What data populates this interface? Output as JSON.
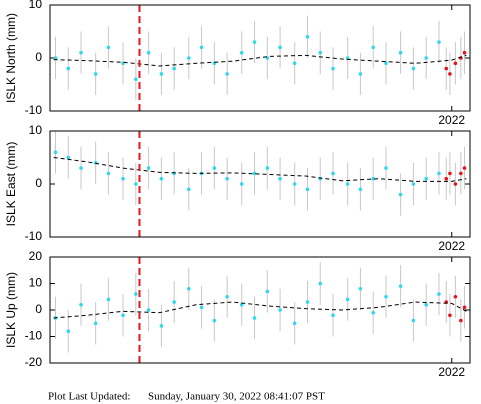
{
  "chart_data": [
    {
      "type": "scatter",
      "ylabel": "ISLK North (mm)",
      "xlim": [
        2019.8,
        2022.1
      ],
      "ylim": [
        -10,
        10
      ],
      "yticks": [
        -10,
        0,
        10
      ],
      "xticks": [
        2022
      ],
      "vline": {
        "x": 2020.29,
        "color": "#e8141c"
      },
      "series": [
        {
          "mode": "markers",
          "color": "#2fd8ee",
          "error": 4,
          "x": [
            2019.83,
            2019.9,
            2019.97,
            2020.05,
            2020.12,
            2020.2,
            2020.27,
            2020.34,
            2020.41,
            2020.48,
            2020.56,
            2020.63,
            2020.7,
            2020.77,
            2020.85,
            2020.92,
            2020.99,
            2021.06,
            2021.14,
            2021.21,
            2021.28,
            2021.35,
            2021.43,
            2021.5,
            2021.57,
            2021.64,
            2021.72,
            2021.79,
            2021.86,
            2021.93
          ],
          "values": [
            0,
            -2,
            1,
            -3,
            2,
            -1,
            -4,
            1,
            -3,
            -2,
            0,
            2,
            -1,
            -3,
            1,
            3,
            0,
            2,
            -1,
            4,
            1,
            -2,
            0,
            -3,
            2,
            -1,
            1,
            -2,
            0,
            3
          ]
        },
        {
          "mode": "markers",
          "color": "#e8141c",
          "error": 4,
          "x": [
            2021.97,
            2021.99,
            2022.02,
            2022.05,
            2022.07
          ],
          "values": [
            -2,
            -3,
            -1,
            0,
            1
          ]
        },
        {
          "mode": "line",
          "color": "#000000",
          "x": [
            2019.82,
            2020.0,
            2020.2,
            2020.4,
            2020.6,
            2020.8,
            2021.0,
            2021.2,
            2021.4,
            2021.6,
            2021.8,
            2022.0,
            2022.08
          ],
          "values": [
            -0.3,
            -0.5,
            -0.8,
            -1.5,
            -1,
            -0.6,
            0.3,
            0.5,
            -0.2,
            -0.6,
            -1,
            -0.4,
            0.5
          ]
        }
      ]
    },
    {
      "type": "scatter",
      "ylabel": "ISLK East (mm)",
      "xlim": [
        2019.8,
        2022.1
      ],
      "ylim": [
        -10,
        10
      ],
      "yticks": [
        -10,
        0,
        10
      ],
      "xticks": [
        2022
      ],
      "vline": {
        "x": 2020.29,
        "color": "#e8141c"
      },
      "series": [
        {
          "mode": "markers",
          "color": "#2fd8ee",
          "error": 4,
          "x": [
            2019.83,
            2019.9,
            2019.97,
            2020.05,
            2020.12,
            2020.2,
            2020.27,
            2020.34,
            2020.41,
            2020.48,
            2020.56,
            2020.63,
            2020.7,
            2020.77,
            2020.85,
            2020.92,
            2020.99,
            2021.06,
            2021.14,
            2021.21,
            2021.28,
            2021.35,
            2021.43,
            2021.5,
            2021.57,
            2021.64,
            2021.72,
            2021.79,
            2021.86,
            2021.93
          ],
          "values": [
            6,
            5,
            3,
            4,
            2,
            1,
            0,
            3,
            1,
            2,
            -1,
            2,
            3,
            1,
            0,
            2,
            3,
            1,
            0,
            -1,
            1,
            2,
            0,
            -1,
            1,
            3,
            -2,
            0,
            1,
            2
          ]
        },
        {
          "mode": "markers",
          "color": "#e8141c",
          "error": 4,
          "x": [
            2021.97,
            2021.99,
            2022.02,
            2022.05,
            2022.07
          ],
          "values": [
            1,
            2,
            0,
            2,
            3
          ]
        },
        {
          "mode": "line",
          "color": "#000000",
          "x": [
            2019.82,
            2020.0,
            2020.2,
            2020.4,
            2020.6,
            2020.8,
            2021.0,
            2021.2,
            2021.4,
            2021.6,
            2021.8,
            2022.0,
            2022.08
          ],
          "values": [
            5,
            4.2,
            3,
            2.2,
            2,
            2.1,
            1.8,
            1.5,
            0.6,
            1,
            0.5,
            0.5,
            1
          ]
        }
      ]
    },
    {
      "type": "scatter",
      "ylabel": "ISLK Up (mm)",
      "xlim": [
        2019.8,
        2022.1
      ],
      "ylim": [
        -20,
        20
      ],
      "yticks": [
        -20,
        -10,
        0,
        10,
        20
      ],
      "xticks": [
        2022
      ],
      "vline": {
        "x": 2020.29,
        "color": "#e8141c"
      },
      "series": [
        {
          "mode": "markers",
          "color": "#2fd8ee",
          "error": 8,
          "x": [
            2019.83,
            2019.9,
            2019.97,
            2020.05,
            2020.12,
            2020.2,
            2020.27,
            2020.34,
            2020.41,
            2020.48,
            2020.56,
            2020.63,
            2020.7,
            2020.77,
            2020.85,
            2020.92,
            2020.99,
            2021.06,
            2021.14,
            2021.21,
            2021.28,
            2021.35,
            2021.43,
            2021.5,
            2021.57,
            2021.64,
            2021.72,
            2021.79,
            2021.86,
            2021.93
          ],
          "values": [
            -3,
            -8,
            2,
            -5,
            4,
            -2,
            6,
            0,
            -6,
            3,
            8,
            1,
            -4,
            5,
            2,
            -3,
            7,
            0,
            -5,
            3,
            10,
            -2,
            4,
            8,
            -1,
            5,
            9,
            -4,
            2,
            6
          ]
        },
        {
          "mode": "markers",
          "color": "#e8141c",
          "error": 8,
          "x": [
            2021.97,
            2021.99,
            2022.02,
            2022.05,
            2022.07
          ],
          "values": [
            3,
            -2,
            5,
            -4,
            1
          ]
        },
        {
          "mode": "line",
          "color": "#000000",
          "x": [
            2019.82,
            2020.0,
            2020.2,
            2020.4,
            2020.6,
            2020.8,
            2021.0,
            2021.2,
            2021.4,
            2021.6,
            2021.8,
            2022.0,
            2022.08
          ],
          "values": [
            -3,
            -2,
            -0.5,
            -1,
            2,
            3,
            1.5,
            0.5,
            0,
            1,
            3,
            2.5,
            -0.5
          ]
        }
      ]
    }
  ],
  "footer": {
    "label": "Plot Last Updated:",
    "date": "Sunday, January 30, 2022 08:41:07 PST"
  }
}
